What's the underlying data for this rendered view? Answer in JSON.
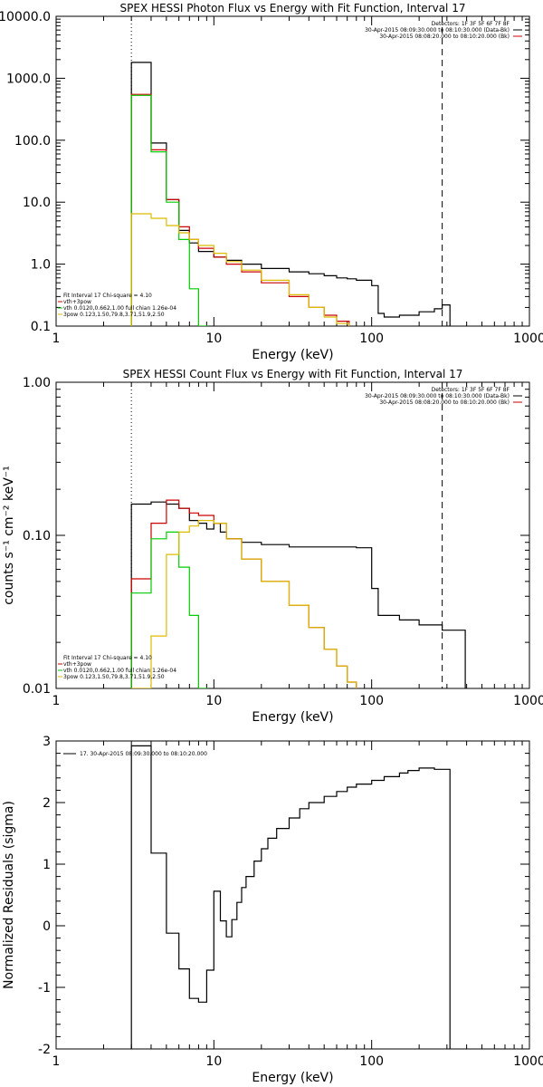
{
  "chart_data": [
    {
      "type": "line",
      "title": "SPEX HESSI Photon Flux vs Energy with Fit Function, Interval 17",
      "xlabel": "Energy (keV)",
      "ylabel": "",
      "xscale": "log",
      "yscale": "log",
      "xlim": [
        1,
        1000
      ],
      "ylim": [
        0.1,
        10000
      ],
      "xticks": [
        1,
        10,
        100,
        1000
      ],
      "xtick_labels": [
        "1",
        "10",
        "100",
        "1000"
      ],
      "yticks": [
        0.1,
        1,
        10,
        100,
        1000,
        10000
      ],
      "ytick_labels": [
        "0.1",
        "1.0",
        "10.0",
        "100.0",
        "1000.0",
        "10000.0"
      ],
      "vlines": [
        {
          "x": 3,
          "style": "dotted"
        },
        {
          "x": 280,
          "style": "dashed"
        }
      ],
      "legend_top_right": [
        "Detectors: 1F 3F 5F 6F 7F 8F",
        "30-Apr-2015 08:09:30.000 to 08:10:30.000 (Data-Bk)",
        "30-Apr-2015 08:08:20.000 to 08:10:20.000 (Bk)"
      ],
      "legend_top_right_colors": [
        "#000000",
        "#000000",
        "#cc0000"
      ],
      "legend_bottom_left": [
        "Fit Interval 17    Chi-square = 4.10",
        "vth+3pow",
        "vth 0.0120,0.662,1.00  full chian 1.26e-04",
        "3pow 0.123,1.50,79.8,3.71,51.9,2.50"
      ],
      "legend_bottom_left_colors": [
        "#000000",
        "#cc0000",
        "#00cc00",
        "#ddbb00"
      ],
      "series": [
        {
          "color": "#000000",
          "x": [
            3,
            4,
            5,
            6,
            7,
            8,
            10,
            12,
            15,
            20,
            30,
            40,
            50,
            60,
            70,
            80,
            100,
            110,
            120,
            150,
            200,
            250,
            280
          ],
          "y": [
            1800,
            90,
            11,
            3.5,
            2.2,
            1.6,
            1.3,
            1.15,
            1.0,
            0.85,
            0.75,
            0.7,
            0.65,
            0.6,
            0.58,
            0.55,
            0.45,
            0.16,
            0.14,
            0.15,
            0.17,
            0.19,
            0.22
          ]
        },
        {
          "color": "#cc0000",
          "x": [
            3,
            4,
            5,
            6,
            7,
            8,
            10,
            12,
            15,
            20,
            30,
            40,
            50,
            60
          ],
          "y": [
            550,
            70,
            11,
            4.0,
            2.5,
            1.8,
            1.3,
            1.0,
            0.75,
            0.5,
            0.3,
            0.2,
            0.15,
            0.12
          ]
        },
        {
          "color": "#00cc00",
          "x": [
            3,
            4,
            5,
            6,
            7,
            8
          ],
          "y": [
            530,
            65,
            10,
            2.5,
            0.4,
            0.1
          ]
        },
        {
          "color": "#ddbb00",
          "x": [
            3,
            4,
            5,
            6,
            7,
            8,
            10,
            12,
            15,
            20,
            30,
            40,
            50,
            60
          ],
          "y": [
            6.5,
            5.5,
            4.2,
            3.2,
            2.5,
            2.0,
            1.5,
            1.1,
            0.8,
            0.55,
            0.32,
            0.2,
            0.14,
            0.11
          ]
        }
      ]
    },
    {
      "type": "line",
      "title": "SPEX HESSI Count Flux vs Energy with Fit Function, Interval 17",
      "xlabel": "Energy (keV)",
      "ylabel": "counts s⁻¹ cm⁻² keV⁻¹",
      "xscale": "log",
      "yscale": "log",
      "xlim": [
        1,
        1000
      ],
      "ylim": [
        0.01,
        1
      ],
      "xticks": [
        1,
        10,
        100,
        1000
      ],
      "xtick_labels": [
        "1",
        "10",
        "100",
        "1000"
      ],
      "yticks": [
        0.01,
        0.1,
        1
      ],
      "ytick_labels": [
        "0.01",
        "0.10",
        "1.00"
      ],
      "vlines": [
        {
          "x": 3,
          "style": "dotted"
        },
        {
          "x": 280,
          "style": "dashed"
        }
      ],
      "legend_top_right": [
        "Detectors: 1F 3F 5F 6F 7F 8F",
        "30-Apr-2015 08:09:30.000 to 08:10:30.000 (Data-Bk)",
        "30-Apr-2015 08:08:20.000 to 08:10:20.000 (Bk)"
      ],
      "legend_top_right_colors": [
        "#000000",
        "#000000",
        "#cc0000"
      ],
      "legend_bottom_left": [
        "Fit Interval 17    Chi-square = 4.10",
        "vth+3pow",
        "vth 0.0120,0.662,1.00  full chian 1.26e-04",
        "3pow 0.123,1.50,79.8,3.71,51.9,2.50"
      ],
      "legend_bottom_left_colors": [
        "#000000",
        "#cc0000",
        "#00cc00",
        "#ddbb00"
      ],
      "series": [
        {
          "color": "#000000",
          "x": [
            3,
            4,
            5,
            6,
            7,
            8,
            9,
            10,
            11,
            12,
            15,
            20,
            30,
            40,
            50,
            60,
            70,
            80,
            100,
            110,
            150,
            200,
            280
          ],
          "y": [
            0.16,
            0.165,
            0.16,
            0.15,
            0.125,
            0.12,
            0.11,
            0.12,
            0.105,
            0.095,
            0.09,
            0.087,
            0.084,
            0.084,
            0.084,
            0.084,
            0.084,
            0.083,
            0.045,
            0.03,
            0.028,
            0.026,
            0.024
          ]
        },
        {
          "color": "#cc0000",
          "x": [
            3,
            4,
            5,
            6,
            7,
            8,
            10,
            12,
            15,
            20,
            30,
            40,
            50,
            60,
            70,
            80
          ],
          "y": [
            0.052,
            0.12,
            0.17,
            0.15,
            0.14,
            0.135,
            0.12,
            0.095,
            0.07,
            0.05,
            0.035,
            0.025,
            0.018,
            0.014,
            0.011,
            0.009
          ]
        },
        {
          "color": "#00cc00",
          "x": [
            3,
            4,
            5,
            6,
            7,
            8
          ],
          "y": [
            0.042,
            0.095,
            0.105,
            0.062,
            0.03,
            0.01
          ]
        },
        {
          "color": "#ddbb00",
          "x": [
            3,
            4,
            5,
            6,
            7,
            8,
            10,
            12,
            15,
            20,
            30,
            40,
            50,
            60,
            70,
            80
          ],
          "y": [
            0.01,
            0.022,
            0.075,
            0.105,
            0.115,
            0.125,
            0.12,
            0.095,
            0.07,
            0.05,
            0.035,
            0.025,
            0.018,
            0.014,
            0.011,
            0.009
          ]
        }
      ]
    },
    {
      "type": "line",
      "title": "",
      "xlabel": "Energy (keV)",
      "ylabel": "Normalized Residuals (sigma)",
      "xscale": "log",
      "yscale": "linear",
      "xlim": [
        1,
        1000
      ],
      "ylim": [
        -2,
        3
      ],
      "xticks": [
        1,
        10,
        100,
        1000
      ],
      "xtick_labels": [
        "1",
        "10",
        "100",
        "1000"
      ],
      "yticks": [
        -2,
        -1,
        0,
        1,
        2,
        3
      ],
      "ytick_labels": [
        "-2",
        "-1",
        "0",
        "1",
        "2",
        "3"
      ],
      "legend": [
        "17. 30-Apr-2015 08:09:30.000 to 08:10:20.000"
      ],
      "series": [
        {
          "color": "#000000",
          "x": [
            3,
            4,
            5,
            6,
            7,
            8,
            9,
            10,
            11,
            12,
            13,
            14,
            15,
            16,
            18,
            20,
            22,
            25,
            30,
            35,
            40,
            50,
            60,
            70,
            80,
            100,
            120,
            150,
            170,
            200,
            250,
            280
          ],
          "y": [
            2.92,
            1.18,
            -0.12,
            -0.7,
            -1.18,
            -1.24,
            -0.72,
            0.56,
            0.08,
            -0.18,
            0.1,
            0.38,
            0.62,
            0.8,
            1.05,
            1.25,
            1.42,
            1.58,
            1.75,
            1.9,
            2.0,
            2.1,
            2.18,
            2.25,
            2.3,
            2.36,
            2.42,
            2.48,
            2.52,
            2.56,
            2.54,
            2.54
          ]
        }
      ]
    }
  ]
}
